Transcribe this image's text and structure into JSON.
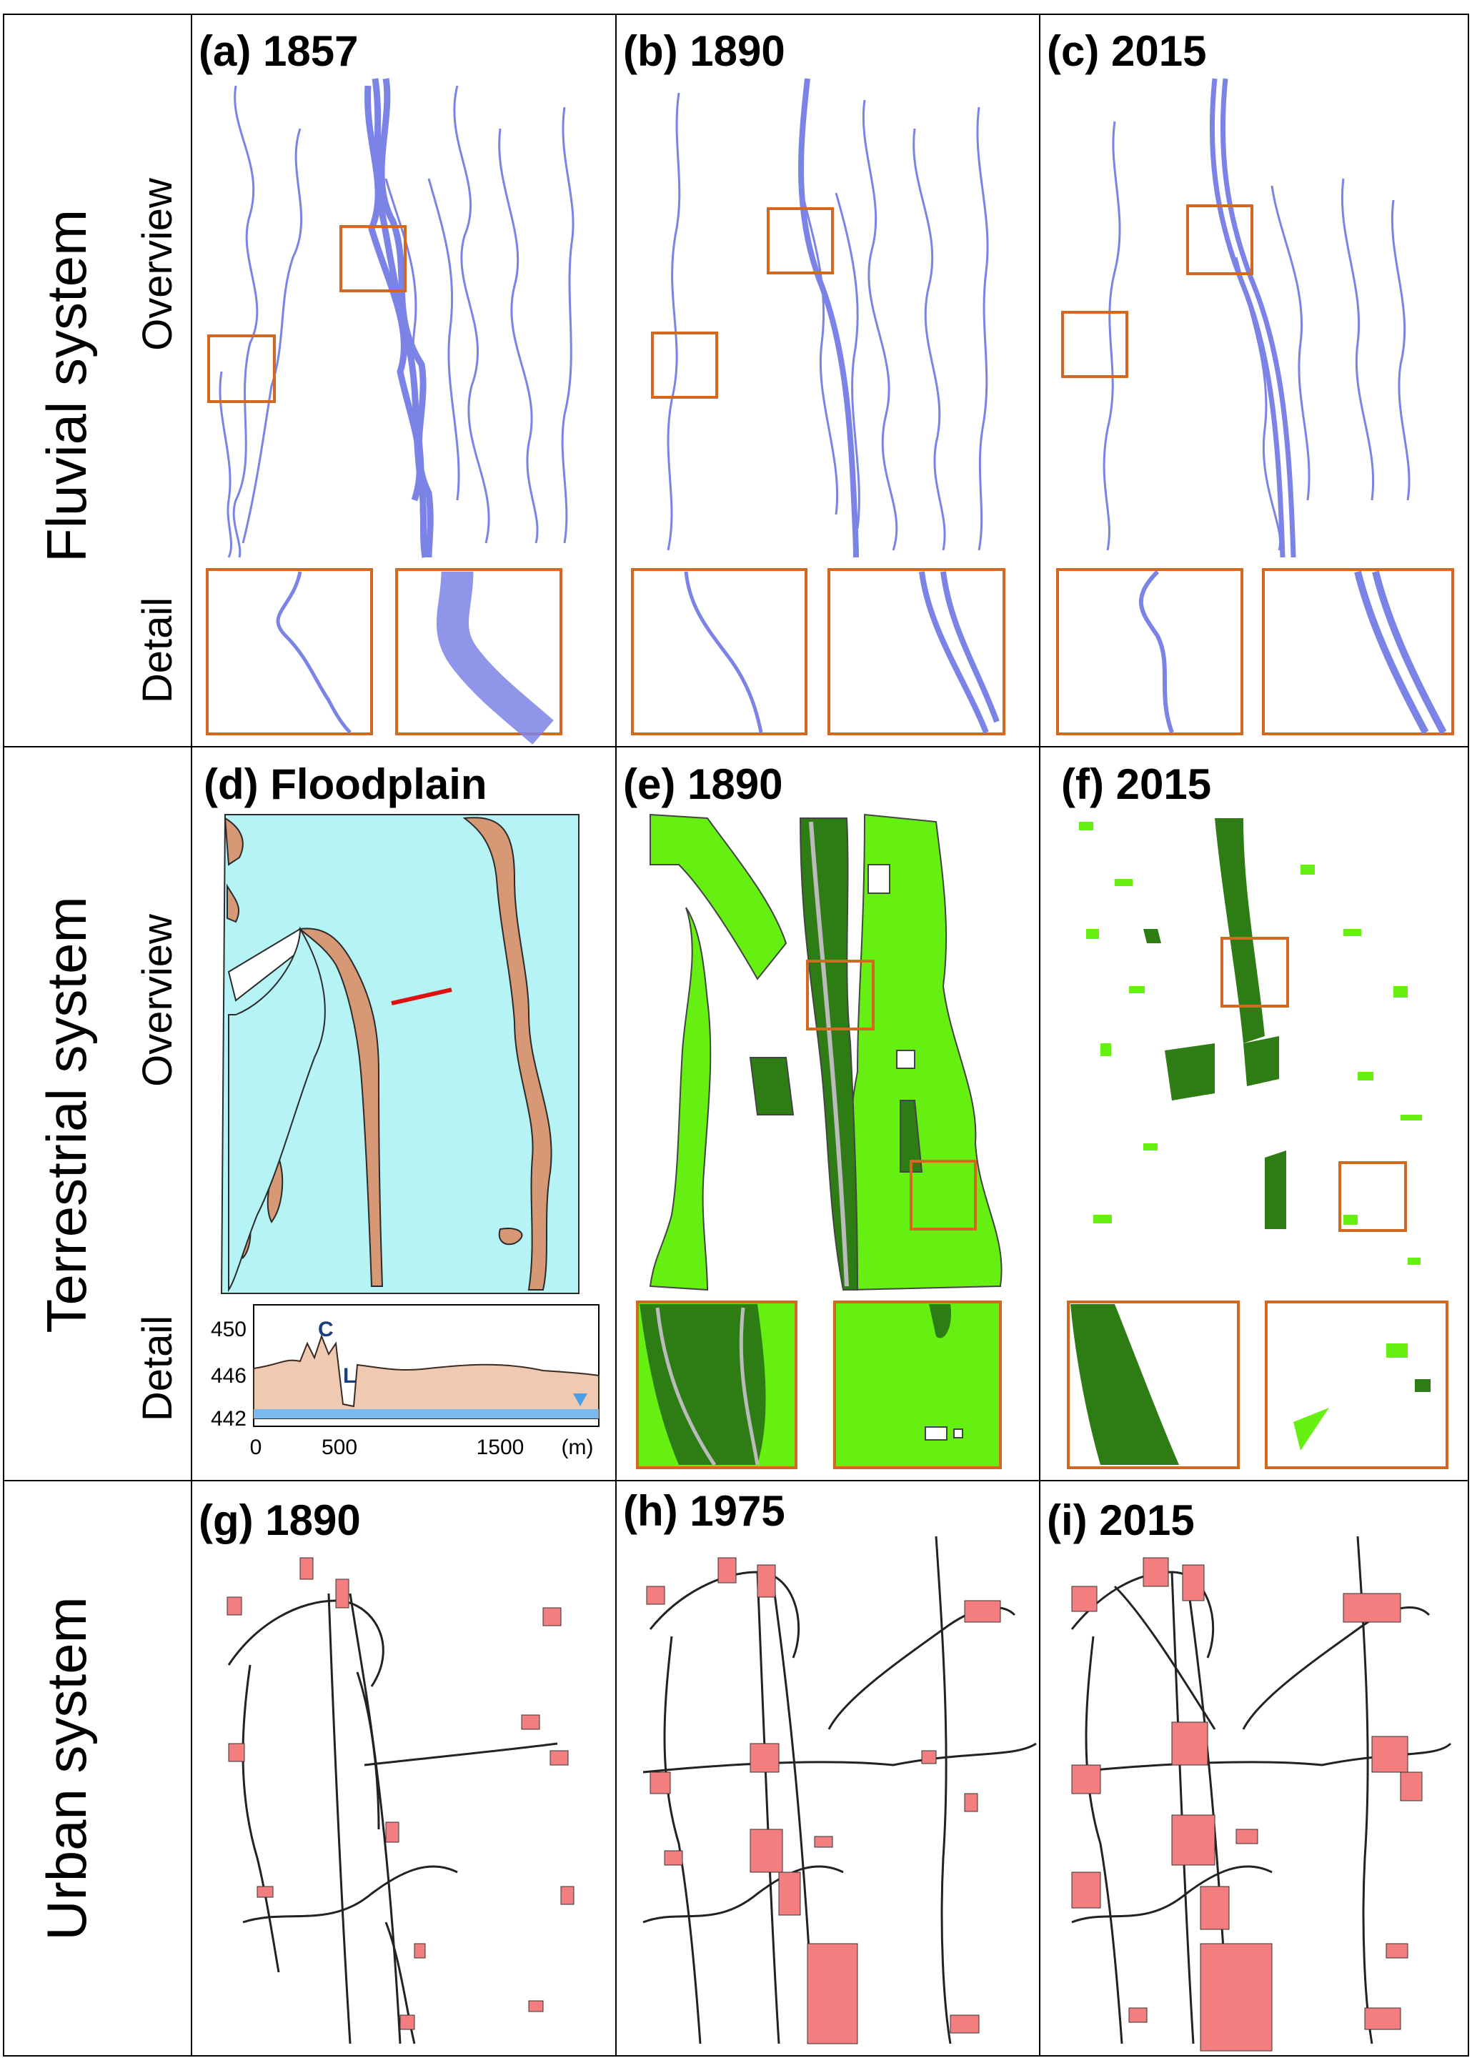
{
  "rows": [
    {
      "system": "Fluvial system",
      "overview": "Overview",
      "detail": "Detail"
    },
    {
      "system": "Terrestrial system",
      "overview": "Overview",
      "detail": "Detail"
    },
    {
      "system": "Urban system"
    }
  ],
  "panels": {
    "a": "(a) 1857",
    "b": "(b) 1890",
    "c": "(c) 2015",
    "d": "(d) Floodplain",
    "e": "(e) 1890",
    "f": "(f) 2015",
    "g": "(g) 1890",
    "h": "(h) 1975",
    "i": "(i) 2015"
  },
  "profile": {
    "y_ticks": [
      "450",
      "446",
      "442"
    ],
    "x_ticks": [
      "0",
      "500",
      "1500"
    ],
    "x_unit": "(m)",
    "marker_c": "C",
    "marker_l": "L"
  },
  "colors": {
    "frame": "#000000",
    "box": "#d2691e",
    "river": "#7b84e6",
    "floodplain": "#b6f3f5",
    "terrace": "#d69875",
    "forest_dark": "#2e7d14",
    "forest_light": "#66f012",
    "urban": "#f27e80",
    "road": "#222222",
    "profile_fill": "#f0c9b3",
    "water": "#7ab8f0",
    "section": "#e01010"
  }
}
